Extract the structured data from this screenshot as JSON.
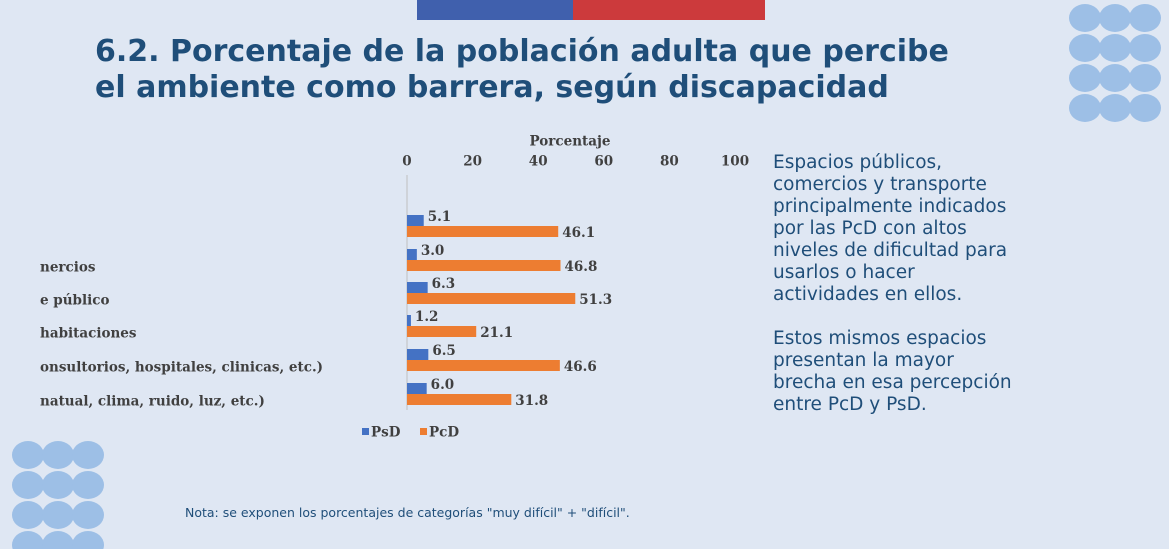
{
  "title": [
    "6.2. Porcentaje de la población adulta que percibe",
    "el ambiente como barrera, según discapacidad"
  ],
  "side_text": [
    [
      "Espacios públicos,",
      "comercios y transporte",
      "principalmente indicados",
      "por las PcD con altos",
      "niveles de dificultad para",
      "usarlos o hacer",
      "actividades en ellos."
    ],
    [
      "Estos mismos espacios",
      "presentan la mayor",
      "brecha en esa percepción",
      "entre PcD y PsD."
    ]
  ],
  "note": "Nota: se exponen los porcentajes de categorías \"muy difícil\" + \"difícil\".",
  "chart_data": {
    "type": "bar",
    "orientation": "horizontal",
    "x_label": "Porcentaje",
    "categories": [
      null,
      "nercios",
      "e público",
      "habitaciones",
      "onsultorios, hospitales, clinicas, etc.)",
      "natual, clima, ruido, luz, etc.)"
    ],
    "series": [
      {
        "name": "PsD",
        "color": "#4472c4",
        "values": [
          5.1,
          3.0,
          6.3,
          1.2,
          6.5,
          6.0
        ],
        "value_labels": [
          "5.1",
          "3.0",
          "6.3",
          "1.2",
          "6.5",
          "6.0"
        ]
      },
      {
        "name": "PcD",
        "color": "#ed7d31",
        "values": [
          46.1,
          46.8,
          51.3,
          21.1,
          46.6,
          31.8
        ]
      }
    ],
    "xlim": [
      0,
      100
    ],
    "xticks": [
      0,
      20,
      40,
      60,
      80,
      100
    ]
  }
}
